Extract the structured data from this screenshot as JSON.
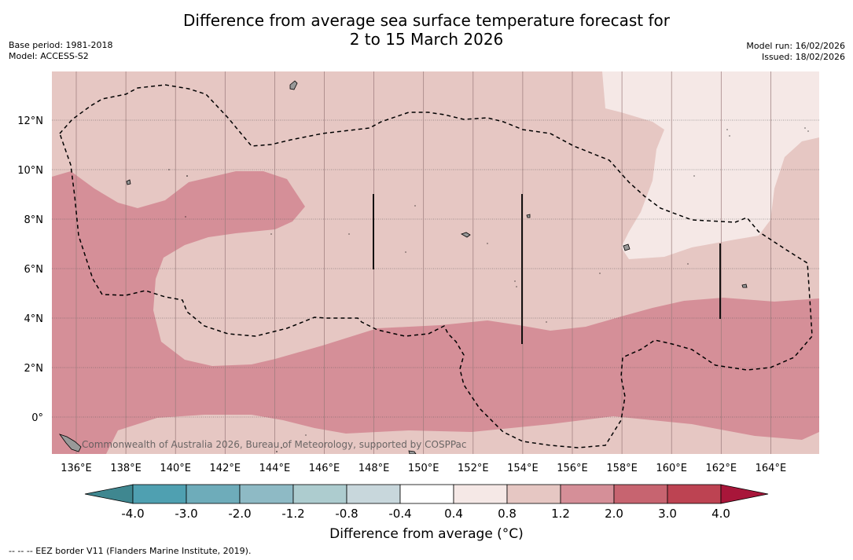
{
  "title": {
    "line1": "Difference from average sea surface temperature forecast for",
    "line2": "2 to 15 March 2026"
  },
  "meta_left": {
    "base_period": "Base period: 1981-2018",
    "model": "Model: ACCESS-S2"
  },
  "meta_right": {
    "model_run": "Model run: 16/02/2026",
    "issued": "Issued: 18/02/2026"
  },
  "map": {
    "lat_labels": [
      "12°N",
      "10°N",
      "8°N",
      "6°N",
      "4°N",
      "2°N",
      "0°"
    ],
    "lon_labels": [
      "136°E",
      "138°E",
      "140°E",
      "142°E",
      "144°E",
      "146°E",
      "148°E",
      "150°E",
      "152°E",
      "154°E",
      "156°E",
      "158°E",
      "160°E",
      "162°E",
      "164°E"
    ],
    "credit": "Commonwealth of Australia 2026, Bureau of Meteorology, supported by COSPPac",
    "colors": {
      "anomaly_0_4_0_8": "#f5e8e6",
      "anomaly_0_8_1_2": "#e6c7c3",
      "anomaly_1_2_2_0": "#d58f98",
      "coastline": "#000000",
      "eez_border": "#000000"
    }
  },
  "colorbar": {
    "tick_labels": [
      "-4.0",
      "-3.0",
      "-2.0",
      "-1.2",
      "-0.8",
      "-0.4",
      "0.4",
      "0.8",
      "1.2",
      "2.0",
      "3.0",
      "4.0"
    ],
    "colors": [
      "#4fa0b1",
      "#6eacba",
      "#8ebac5",
      "#adcccf",
      "#c8d7dc",
      "#ffffff",
      "#f5e8e6",
      "#e6c7c3",
      "#d58f98",
      "#c76470",
      "#bd4352"
    ],
    "under_color": "#3f8790",
    "over_color": "#a8163a",
    "label": "Difference from average (°C)"
  },
  "footnote": "--  --  -- EEZ border V11 (Flanders Marine Institute, 2019)."
}
